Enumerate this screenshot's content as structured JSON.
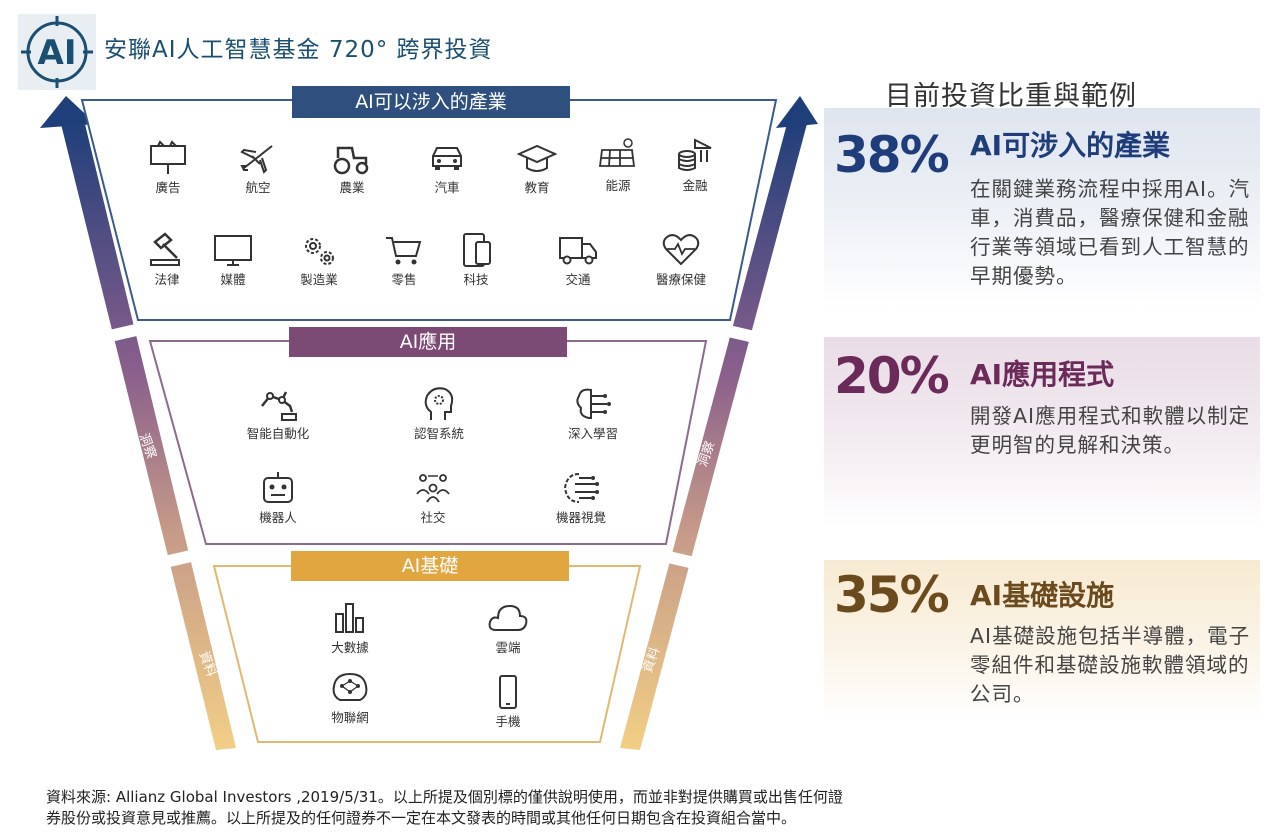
{
  "header": {
    "title": "安聯AI人工智慧基金 720° 跨界投資",
    "logo_text": "AI"
  },
  "funnel": {
    "sections": [
      {
        "title": "AI可以涉入的產業",
        "items": [
          "廣告",
          "航空",
          "農業",
          "汽車",
          "教育",
          "能源",
          "金融",
          "法律",
          "媒體",
          "製造業",
          "零售",
          "科技",
          "交通",
          "醫療保健"
        ]
      },
      {
        "title": "AI應用",
        "items": [
          "智能自動化",
          "認智系統",
          "深入學習",
          "機器人",
          "社交",
          "機器視覺"
        ]
      },
      {
        "title": "AI基礎",
        "items": [
          "大數據",
          "雲端",
          "物聯網",
          "手機"
        ]
      }
    ],
    "left_arrow_labels": [
      "洞察",
      "資料"
    ],
    "right_arrow_labels": [
      "洞察",
      "資料"
    ]
  },
  "right": {
    "title": "目前投資比重與範例",
    "panels": [
      {
        "pct": "38%",
        "title": "AI可涉入的產業",
        "desc": "在關鍵業務流程中採用AI。汽車，消費品，醫療保健和金融行業等領域已看到人工智慧的早期優勢。",
        "color": "#1f3d7a"
      },
      {
        "pct": "20%",
        "title": "AI應用程式",
        "desc": "開發AI應用程式和軟體以制定更明智的見解和決策。",
        "color": "#6b2a5a"
      },
      {
        "pct": "35%",
        "title": "AI基礎設施",
        "desc": "AI基礎設施包括半導體，電子零組件和基礎設施軟體領域的公司。",
        "color": "#6b4a1e"
      }
    ]
  },
  "footer": {
    "line1": "資料來源: Allianz Global Investors ,2019/5/31。以上所提及個別標的僅供說明使用，而並非對提供購買或出售任何證",
    "line2": "券股份或投資意見或推薦。以上所提及的任何證券不一定在本文發表的時間或其他任何日期包含在投資組合當中。"
  },
  "colors": {
    "navy": "#2f4f7f",
    "purple": "#7b4a75",
    "gold": "#e2a640"
  }
}
